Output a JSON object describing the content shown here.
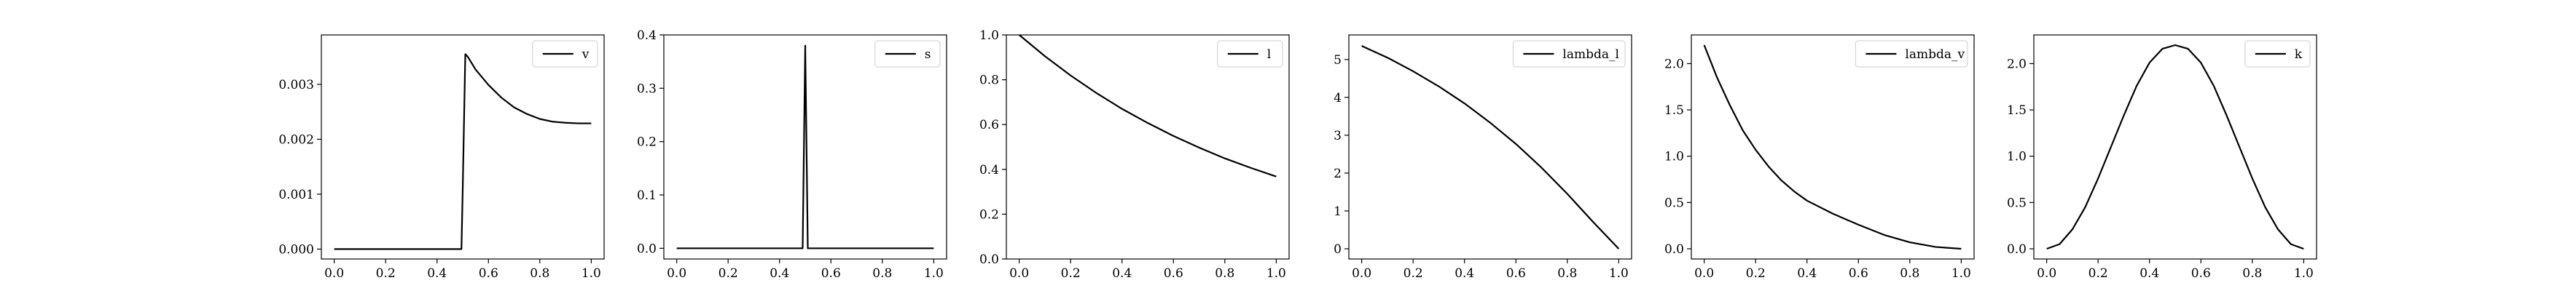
{
  "chart_data": [
    {
      "type": "line",
      "legend": "v",
      "legend_loc": "upper right",
      "grid": false,
      "xlim": [
        -0.05,
        1.05
      ],
      "ylim": [
        -0.00018,
        0.0039
      ],
      "xticks": [
        "0.0",
        "0.2",
        "0.4",
        "0.6",
        "0.8",
        "1.0"
      ],
      "yticks": [
        "0.000",
        "0.001",
        "0.002",
        "0.003"
      ],
      "x": [
        0.0,
        0.1,
        0.2,
        0.3,
        0.4,
        0.495,
        0.5,
        0.51,
        0.52,
        0.55,
        0.6,
        0.65,
        0.7,
        0.75,
        0.8,
        0.85,
        0.9,
        0.95,
        1.0
      ],
      "y": [
        0.0,
        0.0,
        0.0,
        0.0,
        0.0,
        0.0,
        0.0011,
        0.00355,
        0.0035,
        0.00327,
        0.00299,
        0.00276,
        0.00258,
        0.00246,
        0.00237,
        0.00232,
        0.0023,
        0.00229,
        0.00229
      ]
    },
    {
      "type": "line",
      "legend": "s",
      "legend_loc": "upper right",
      "grid": false,
      "xlim": [
        -0.05,
        1.05
      ],
      "ylim": [
        -0.02,
        0.4
      ],
      "xticks": [
        "0.0",
        "0.2",
        "0.4",
        "0.6",
        "0.8",
        "1.0"
      ],
      "yticks": [
        "0.0",
        "0.1",
        "0.2",
        "0.3",
        "0.4"
      ],
      "x": [
        0.0,
        0.1,
        0.2,
        0.3,
        0.4,
        0.49,
        0.5,
        0.51,
        0.52,
        0.6,
        0.7,
        0.8,
        0.9,
        1.0
      ],
      "y": [
        0.0,
        0.0,
        0.0,
        0.0,
        0.0,
        0.0,
        0.38,
        0.0,
        0.0,
        0.0,
        0.0,
        0.0,
        0.0,
        0.0
      ]
    },
    {
      "type": "line",
      "legend": "l",
      "legend_loc": "upper right",
      "grid": false,
      "xlim": [
        -0.05,
        1.05
      ],
      "ylim": [
        0.0,
        1.0
      ],
      "xticks": [
        "0.0",
        "0.2",
        "0.4",
        "0.6",
        "0.8",
        "1.0"
      ],
      "yticks": [
        "0.0",
        "0.2",
        "0.4",
        "0.6",
        "0.8",
        "1.0"
      ],
      "x": [
        0.0,
        0.1,
        0.2,
        0.3,
        0.4,
        0.5,
        0.6,
        0.7,
        0.8,
        0.9,
        1.0
      ],
      "y": [
        1.0,
        0.905,
        0.819,
        0.741,
        0.67,
        0.607,
        0.549,
        0.497,
        0.449,
        0.407,
        0.368
      ]
    },
    {
      "type": "line",
      "legend": "lambda_l",
      "legend_loc": "upper right",
      "grid": false,
      "xlim": [
        -0.05,
        1.05
      ],
      "ylim": [
        -0.27,
        5.65
      ],
      "xticks": [
        "0.0",
        "0.2",
        "0.4",
        "0.6",
        "0.8",
        "1.0"
      ],
      "yticks": [
        "0",
        "1",
        "2",
        "3",
        "4",
        "5"
      ],
      "x": [
        0.0,
        0.1,
        0.2,
        0.3,
        0.4,
        0.5,
        0.6,
        0.7,
        0.8,
        0.9,
        1.0
      ],
      "y": [
        5.36,
        5.05,
        4.69,
        4.29,
        3.84,
        3.33,
        2.77,
        2.14,
        1.45,
        0.71,
        0.0
      ]
    },
    {
      "type": "line",
      "legend": "lambda_v",
      "legend_loc": "upper right",
      "grid": false,
      "xlim": [
        -0.05,
        1.05
      ],
      "ylim": [
        -0.11,
        2.31
      ],
      "xticks": [
        "0.0",
        "0.2",
        "0.4",
        "0.6",
        "0.8",
        "1.0"
      ],
      "yticks": [
        "0.0",
        "0.5",
        "1.0",
        "1.5",
        "2.0"
      ],
      "x": [
        0.0,
        0.05,
        0.1,
        0.15,
        0.2,
        0.25,
        0.3,
        0.35,
        0.4,
        0.5,
        0.6,
        0.7,
        0.8,
        0.9,
        1.0
      ],
      "y": [
        2.2,
        1.85,
        1.55,
        1.28,
        1.07,
        0.89,
        0.74,
        0.62,
        0.52,
        0.38,
        0.26,
        0.15,
        0.07,
        0.02,
        0.0
      ]
    },
    {
      "type": "line",
      "legend": "k",
      "legend_loc": "upper right",
      "grid": false,
      "xlim": [
        -0.05,
        1.05
      ],
      "ylim": [
        -0.11,
        2.31
      ],
      "xticks": [
        "0.0",
        "0.2",
        "0.4",
        "0.6",
        "0.8",
        "1.0"
      ],
      "yticks": [
        "0.0",
        "0.5",
        "1.0",
        "1.5",
        "2.0"
      ],
      "x": [
        0.0,
        0.05,
        0.1,
        0.15,
        0.2,
        0.25,
        0.3,
        0.35,
        0.4,
        0.45,
        0.5,
        0.55,
        0.6,
        0.65,
        0.7,
        0.75,
        0.8,
        0.85,
        0.9,
        0.95,
        1.0
      ],
      "y": [
        0.0,
        0.05,
        0.21,
        0.45,
        0.76,
        1.1,
        1.44,
        1.76,
        2.01,
        2.16,
        2.2,
        2.16,
        2.01,
        1.76,
        1.44,
        1.1,
        0.76,
        0.45,
        0.21,
        0.05,
        0.0
      ]
    }
  ]
}
